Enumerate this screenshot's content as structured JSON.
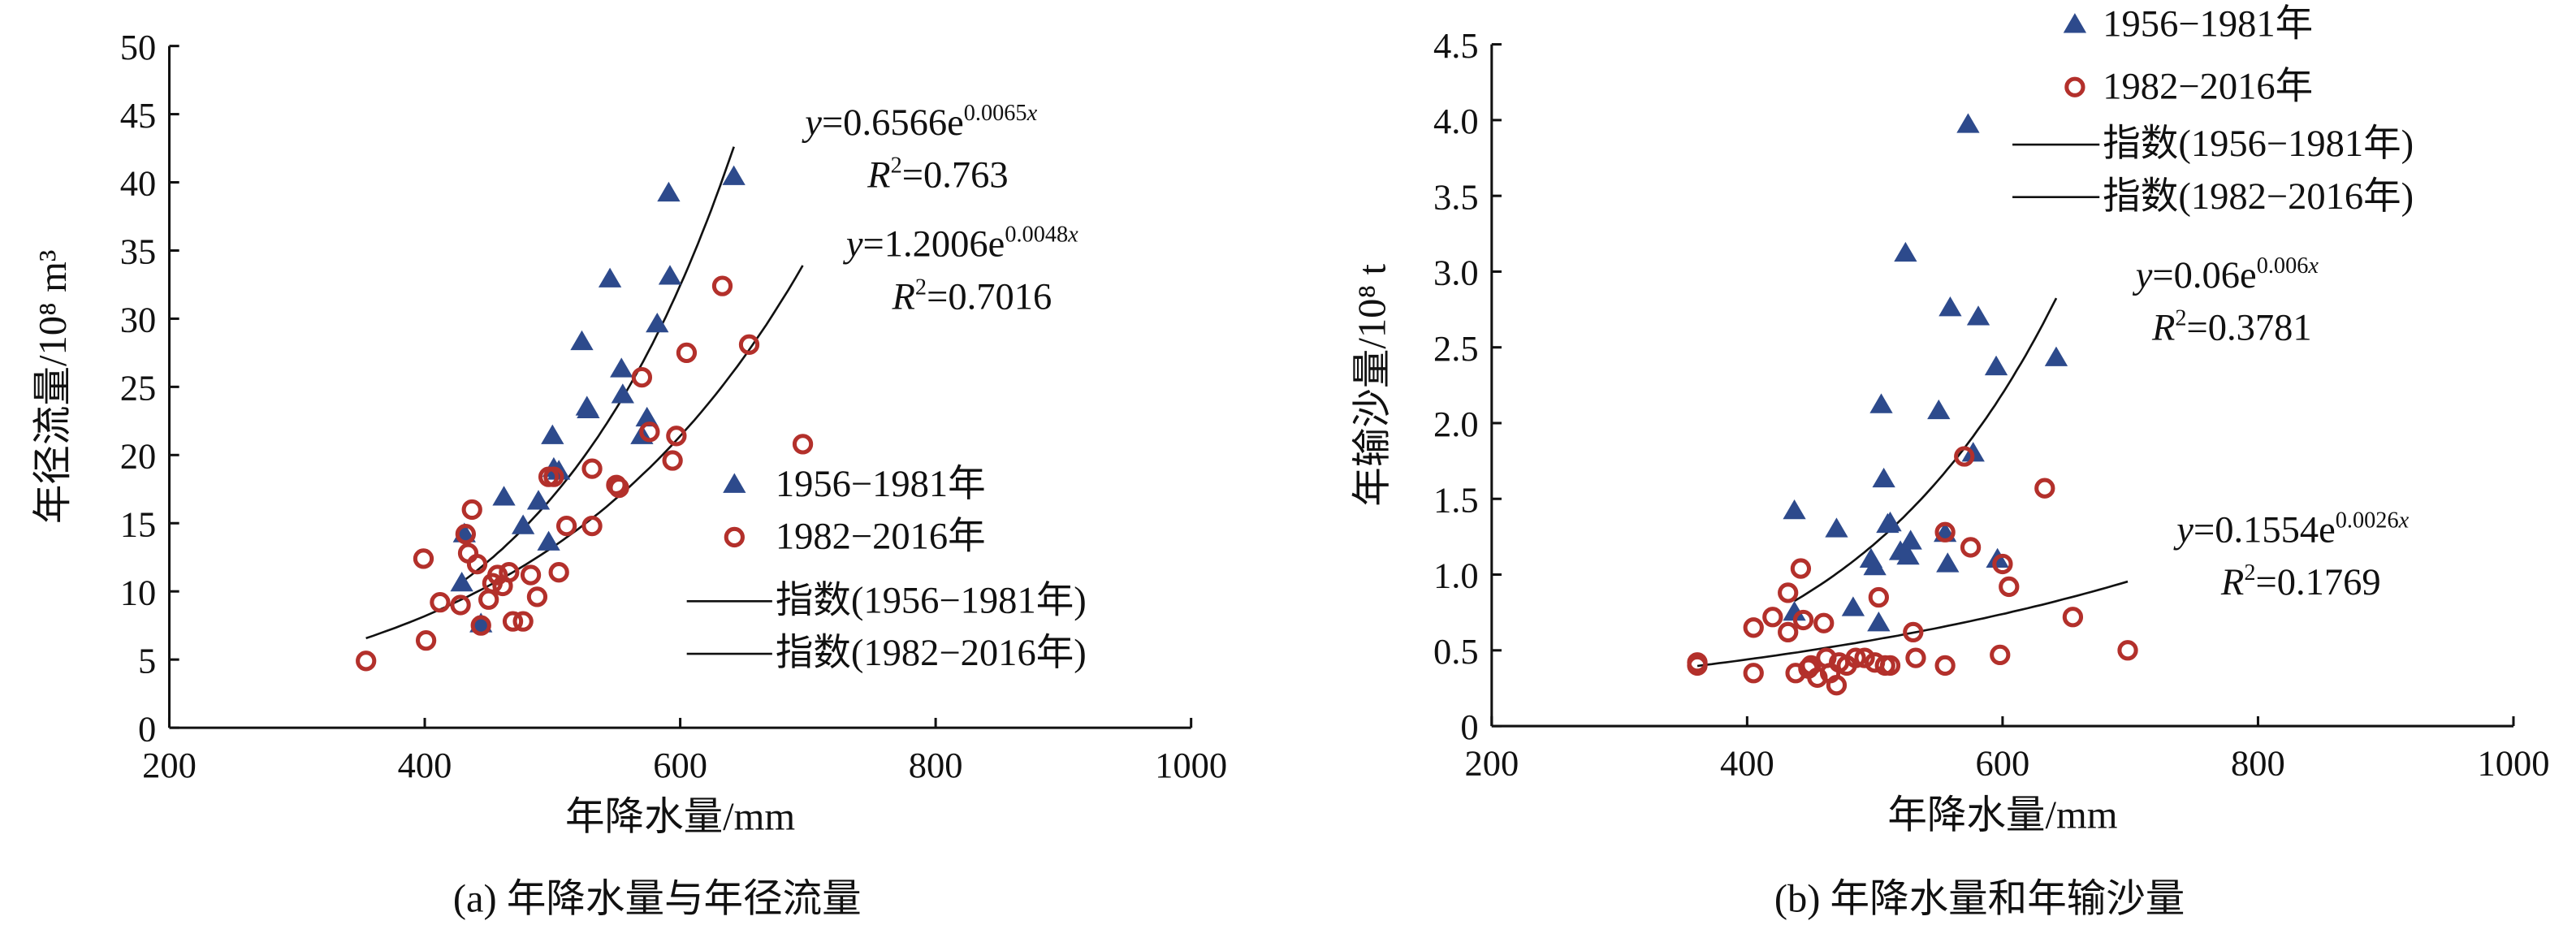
{
  "chart_data": [
    {
      "type": "scatter",
      "caption": "(a) 年降水量与年径流量",
      "xlabel": "年降水量/mm",
      "ylabel": "年径流量/10⁸ m³",
      "xlim": [
        200,
        1000
      ],
      "xticks": [
        200,
        400,
        600,
        800,
        1000
      ],
      "ylim": [
        0,
        50
      ],
      "yticks": [
        0,
        5,
        10,
        15,
        20,
        25,
        30,
        35,
        40,
        45,
        50
      ],
      "legend": "center right",
      "series": [
        {
          "name": "1956−1981年",
          "marker": "triangle",
          "color": "#2d4a8c",
          "x": [
            429,
            431,
            444,
            462,
            477,
            489,
            497,
            500,
            501,
            505,
            523,
            527,
            528,
            545,
            554,
            555,
            570,
            574,
            582,
            591,
            592,
            642
          ],
          "values": [
            10.6,
            14.2,
            7.6,
            16.9,
            14.8,
            16.6,
            13.6,
            21.4,
            19.0,
            18.8,
            28.3,
            23.5,
            23.3,
            32.9,
            26.3,
            24.4,
            21.4,
            22.7,
            29.6,
            39.2,
            33.1,
            40.4
          ]
        },
        {
          "name": "1982−2016年",
          "marker": "circle-open",
          "color": "#b3302b",
          "x": [
            354,
            399,
            401,
            412,
            428,
            432,
            434,
            437,
            441,
            444,
            450,
            453,
            457,
            461,
            466,
            469,
            477,
            483,
            488,
            497,
            501,
            505,
            511,
            531,
            531,
            550,
            552,
            570,
            576,
            594,
            597,
            605,
            633,
            654,
            696
          ],
          "values": [
            4.9,
            12.4,
            6.4,
            9.2,
            9.0,
            14.2,
            12.8,
            16.0,
            12.0,
            7.5,
            9.4,
            10.6,
            11.2,
            10.4,
            11.4,
            7.8,
            7.8,
            11.2,
            9.6,
            18.4,
            18.4,
            11.4,
            14.8,
            19.0,
            14.8,
            17.8,
            17.6,
            25.7,
            21.7,
            19.6,
            21.4,
            27.5,
            32.4,
            28.1,
            20.8
          ]
        }
      ],
      "fits": [
        {
          "name": "指数(1956−1981年)",
          "a": 0.6566,
          "b": 0.0065
        },
        {
          "name": "指数(1982−2016年)",
          "a": 1.2006,
          "b": 0.0048
        }
      ],
      "annotations": [
        {
          "lines": [
            [
              {
                "text": "y",
                "style": "italic"
              },
              {
                "text": "=0.6566e"
              },
              {
                "text": "0.0065",
                "sup": true
              },
              {
                "text": "x",
                "sup": true,
                "style": "italic"
              }
            ],
            [
              {
                "text": "R",
                "style": "italic"
              },
              {
                "text": "2",
                "sup": true
              },
              {
                "text": "=0.763"
              }
            ]
          ]
        },
        {
          "lines": [
            [
              {
                "text": "y",
                "style": "italic"
              },
              {
                "text": "=1.2006e"
              },
              {
                "text": "0.0048",
                "sup": true
              },
              {
                "text": "x",
                "sup": true,
                "style": "italic"
              }
            ],
            [
              {
                "text": "R",
                "style": "italic"
              },
              {
                "text": "2",
                "sup": true
              },
              {
                "text": "=0.7016"
              }
            ]
          ]
        }
      ]
    },
    {
      "type": "scatter",
      "caption": "(b) 年降水量和年输沙量",
      "xlabel": "年降水量/mm",
      "ylabel": "年输沙量/10⁸ t",
      "xlim": [
        200,
        1000
      ],
      "xticks": [
        200,
        400,
        600,
        800,
        1000
      ],
      "ylim": [
        0,
        4.5
      ],
      "yticks": [
        0,
        0.5,
        {
          "value": 1,
          "label": "1.0"
        },
        1.5,
        {
          "value": 2,
          "label": "2.0"
        },
        2.5,
        {
          "value": 3,
          "label": "3.0"
        },
        3.5,
        {
          "value": 4,
          "label": "4.0"
        },
        4.5
      ],
      "legend": "upper center",
      "series": [
        {
          "name": "1956−1981年",
          "marker": "triangle",
          "color": "#2d4a8c",
          "x": [
            437,
            437,
            470,
            483,
            497,
            500,
            503,
            505,
            507,
            510,
            512,
            520,
            524,
            526,
            528,
            550,
            555,
            557,
            559,
            573,
            577,
            581,
            595,
            596,
            642
          ],
          "values": [
            1.42,
            0.75,
            1.3,
            0.78,
            1.1,
            1.05,
            0.68,
            2.12,
            1.63,
            1.33,
            1.34,
            1.15,
            3.12,
            1.12,
            1.22,
            2.08,
            1.27,
            1.07,
            2.76,
            3.97,
            1.8,
            2.7,
            2.37,
            1.1,
            2.43
          ]
        },
        {
          "name": "1982−2016年",
          "marker": "circle-open",
          "color": "#b3302b",
          "x": [
            361,
            361,
            405,
            405,
            420,
            432,
            432,
            438,
            442,
            444,
            448,
            450,
            455,
            460,
            462,
            465,
            470,
            472,
            478,
            485,
            492,
            500,
            503,
            508,
            512,
            530,
            532,
            555,
            555,
            570,
            575,
            598,
            600,
            605,
            633,
            655,
            698
          ],
          "values": [
            0.4,
            0.42,
            0.35,
            0.65,
            0.72,
            0.88,
            0.62,
            0.35,
            1.04,
            0.7,
            0.38,
            0.4,
            0.32,
            0.68,
            0.45,
            0.35,
            0.27,
            0.42,
            0.4,
            0.45,
            0.45,
            0.42,
            0.85,
            0.4,
            0.4,
            0.62,
            0.45,
            0.4,
            1.28,
            1.78,
            1.18,
            0.47,
            1.07,
            0.92,
            1.57,
            0.72,
            0.5
          ]
        }
      ],
      "fits": [
        {
          "name": "指数(1956−1981年)",
          "a": 0.06,
          "b": 0.006
        },
        {
          "name": "指数(1982−2016年)",
          "a": 0.1554,
          "b": 0.0026
        }
      ],
      "annotations": [
        {
          "lines": [
            [
              {
                "text": "y",
                "style": "italic"
              },
              {
                "text": "=0.06e"
              },
              {
                "text": "0.006",
                "sup": true
              },
              {
                "text": "x",
                "sup": true,
                "style": "italic"
              }
            ],
            [
              {
                "text": "R",
                "style": "italic"
              },
              {
                "text": "2",
                "sup": true
              },
              {
                "text": "=0.3781"
              }
            ]
          ]
        },
        {
          "lines": [
            [
              {
                "text": "y",
                "style": "italic"
              },
              {
                "text": "=0.1554e"
              },
              {
                "text": "0.0026",
                "sup": true
              },
              {
                "text": "x",
                "sup": true,
                "style": "italic"
              }
            ],
            [
              {
                "text": "R",
                "style": "italic"
              },
              {
                "text": "2",
                "sup": true
              },
              {
                "text": "=0.1769"
              }
            ]
          ]
        }
      ]
    }
  ]
}
